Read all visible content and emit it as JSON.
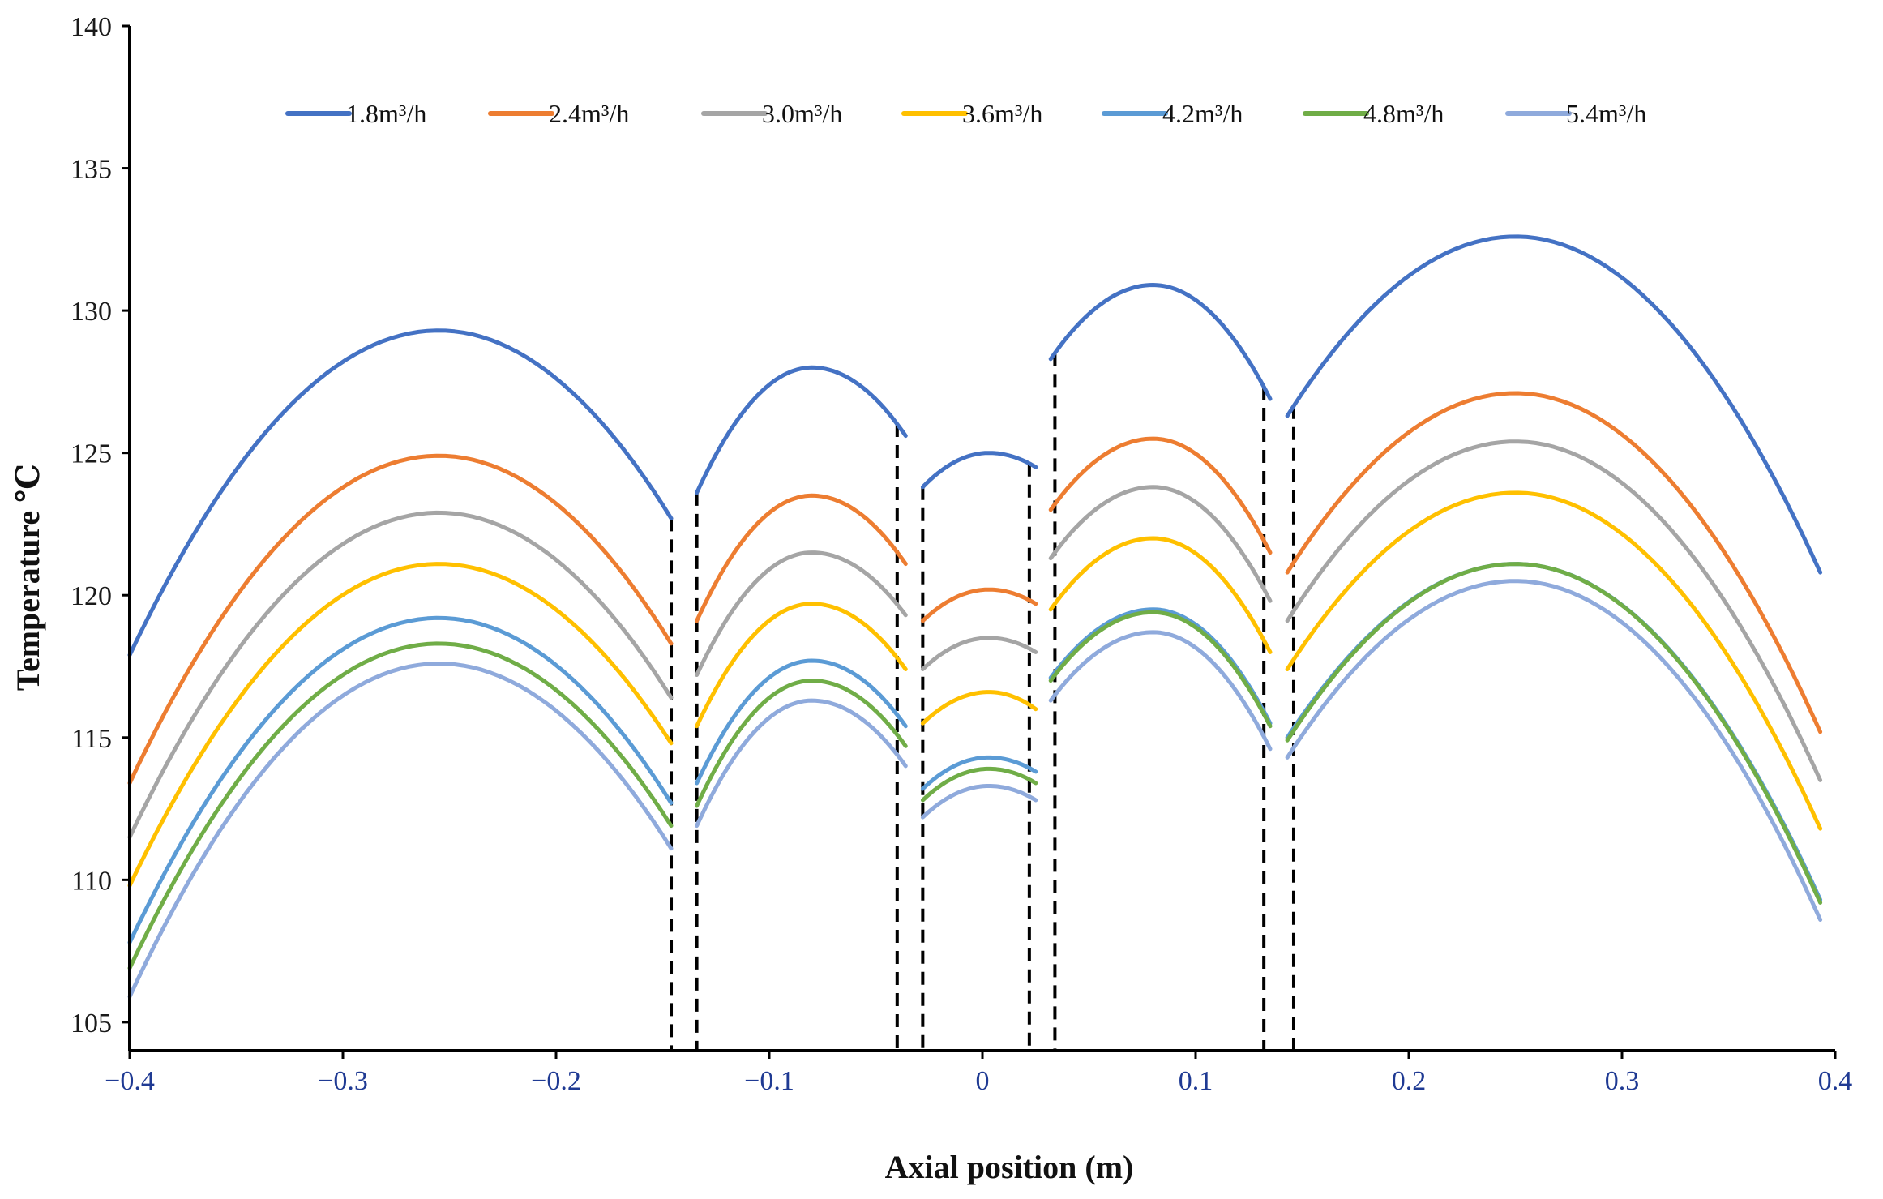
{
  "chart_data": {
    "type": "line",
    "title": "",
    "xlabel": "Axial position  (m)",
    "ylabel": "Temperature   ℃",
    "xlim": [
      -0.4,
      0.4
    ],
    "ylim": [
      104,
      140
    ],
    "xticks": [
      -0.4,
      -0.3,
      -0.2,
      -0.1,
      0,
      0.1,
      0.2,
      0.3,
      0.4
    ],
    "xtick_labels": [
      "−0.4",
      "−0.3",
      "−0.2",
      "−0.1",
      "0",
      "0.1",
      "0.2",
      "0.3",
      "0.4"
    ],
    "yticks": [
      105,
      110,
      115,
      120,
      125,
      130,
      135,
      140
    ],
    "ytick_labels": [
      "105",
      "110",
      "115",
      "120",
      "125",
      "130",
      "135",
      "140"
    ],
    "grid": false,
    "legend_position": "top",
    "segment_boundaries": [
      -0.146,
      -0.134,
      -0.04,
      -0.028,
      0.022,
      0.034,
      0.132,
      0.146
    ],
    "segments": [
      {
        "x_start": -0.4,
        "x_end": -0.146
      },
      {
        "x_start": -0.134,
        "x_end": -0.036
      },
      {
        "x_start": -0.028,
        "x_end": 0.025
      },
      {
        "x_start": 0.032,
        "x_end": 0.135
      },
      {
        "x_start": 0.143,
        "x_end": 0.393
      }
    ],
    "series": [
      {
        "name": "1.8m³/h",
        "color": "#4472c4",
        "segments": [
          {
            "start": 117.9,
            "peak_x": -0.255,
            "peak": 129.3,
            "end": 122.7
          },
          {
            "start": 123.6,
            "peak_x": -0.08,
            "peak": 128.0,
            "end": 125.6
          },
          {
            "start": 123.8,
            "peak_x": 0.003,
            "peak": 125.0,
            "end": 124.5
          },
          {
            "start": 128.3,
            "peak_x": 0.08,
            "peak": 130.9,
            "end": 126.9
          },
          {
            "start": 126.3,
            "peak_x": 0.25,
            "peak": 132.6,
            "end": 120.8
          }
        ]
      },
      {
        "name": "2.4m³/h",
        "color": "#ed7d31",
        "segments": [
          {
            "start": 113.4,
            "peak_x": -0.255,
            "peak": 124.9,
            "end": 118.3
          },
          {
            "start": 119.1,
            "peak_x": -0.08,
            "peak": 123.5,
            "end": 121.1
          },
          {
            "start": 119.1,
            "peak_x": 0.003,
            "peak": 120.2,
            "end": 119.7
          },
          {
            "start": 123.0,
            "peak_x": 0.08,
            "peak": 125.5,
            "end": 121.5
          },
          {
            "start": 120.8,
            "peak_x": 0.25,
            "peak": 127.1,
            "end": 115.2
          }
        ]
      },
      {
        "name": "3.0m³/h",
        "color": "#a5a5a5",
        "segments": [
          {
            "start": 111.5,
            "peak_x": -0.255,
            "peak": 122.9,
            "end": 116.4
          },
          {
            "start": 117.2,
            "peak_x": -0.08,
            "peak": 121.5,
            "end": 119.3
          },
          {
            "start": 117.4,
            "peak_x": 0.003,
            "peak": 118.5,
            "end": 118.0
          },
          {
            "start": 121.3,
            "peak_x": 0.08,
            "peak": 123.8,
            "end": 119.8
          },
          {
            "start": 119.1,
            "peak_x": 0.25,
            "peak": 125.4,
            "end": 113.5
          }
        ]
      },
      {
        "name": "3.6m³/h",
        "color": "#ffc000",
        "segments": [
          {
            "start": 109.8,
            "peak_x": -0.255,
            "peak": 121.1,
            "end": 114.8
          },
          {
            "start": 115.4,
            "peak_x": -0.08,
            "peak": 119.7,
            "end": 117.4
          },
          {
            "start": 115.5,
            "peak_x": 0.003,
            "peak": 116.6,
            "end": 116.0
          },
          {
            "start": 119.5,
            "peak_x": 0.08,
            "peak": 122.0,
            "end": 118.0
          },
          {
            "start": 117.4,
            "peak_x": 0.25,
            "peak": 123.6,
            "end": 111.8
          }
        ]
      },
      {
        "name": "4.2m³/h",
        "color": "#5b9bd5",
        "segments": [
          {
            "start": 107.8,
            "peak_x": -0.255,
            "peak": 119.2,
            "end": 112.7
          },
          {
            "start": 113.4,
            "peak_x": -0.08,
            "peak": 117.7,
            "end": 115.4
          },
          {
            "start": 113.2,
            "peak_x": 0.003,
            "peak": 114.3,
            "end": 113.8
          },
          {
            "start": 117.1,
            "peak_x": 0.08,
            "peak": 119.5,
            "end": 115.5
          },
          {
            "start": 115.0,
            "peak_x": 0.25,
            "peak": 121.1,
            "end": 109.3
          }
        ]
      },
      {
        "name": "4.8m³/h",
        "color": "#70ad47",
        "segments": [
          {
            "start": 106.9,
            "peak_x": -0.255,
            "peak": 118.3,
            "end": 111.9
          },
          {
            "start": 112.6,
            "peak_x": -0.08,
            "peak": 117.0,
            "end": 114.7
          },
          {
            "start": 112.8,
            "peak_x": 0.003,
            "peak": 113.9,
            "end": 113.4
          },
          {
            "start": 117.0,
            "peak_x": 0.08,
            "peak": 119.4,
            "end": 115.4
          },
          {
            "start": 114.9,
            "peak_x": 0.25,
            "peak": 121.1,
            "end": 109.2
          }
        ]
      },
      {
        "name": "5.4m³/h",
        "color": "#8faadc",
        "segments": [
          {
            "start": 105.9,
            "peak_x": -0.255,
            "peak": 117.6,
            "end": 111.1
          },
          {
            "start": 111.9,
            "peak_x": -0.08,
            "peak": 116.3,
            "end": 114.0
          },
          {
            "start": 112.2,
            "peak_x": 0.003,
            "peak": 113.3,
            "end": 112.8
          },
          {
            "start": 116.3,
            "peak_x": 0.08,
            "peak": 118.7,
            "end": 114.6
          },
          {
            "start": 114.3,
            "peak_x": 0.25,
            "peak": 120.5,
            "end": 108.6
          }
        ]
      }
    ]
  }
}
